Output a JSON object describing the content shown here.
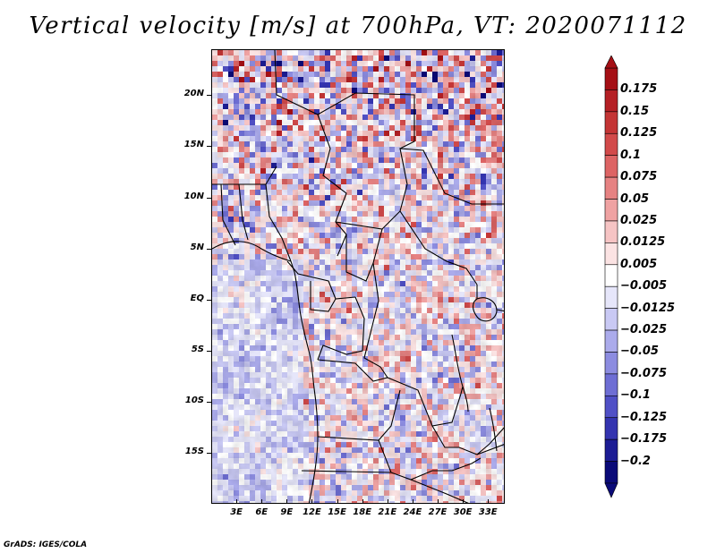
{
  "title": "Vertical velocity [m/s] at 700hPa, VT: 2020071112",
  "credit": "GrADS: IGES/COLA",
  "map": {
    "lat_labels": [
      "20N",
      "15N",
      "10N",
      "5N",
      "EQ",
      "5S",
      "10S",
      "15S"
    ],
    "lat_values": [
      20,
      15,
      10,
      5,
      0,
      -5,
      -10,
      -15
    ],
    "lon_labels": [
      "3E",
      "6E",
      "9E",
      "12E",
      "15E",
      "18E",
      "21E",
      "24E",
      "27E",
      "30E",
      "33E"
    ],
    "lon_values": [
      3,
      6,
      9,
      12,
      15,
      18,
      21,
      24,
      27,
      30,
      33
    ],
    "lat_range": [
      -20,
      24.5
    ],
    "lon_range": [
      0,
      35
    ]
  },
  "colorbar": {
    "labels": [
      "0.175",
      "0.15",
      "0.125",
      "0.1",
      "0.075",
      "0.05",
      "0.025",
      "0.0125",
      "0.005",
      "−0.005",
      "−0.0125",
      "−0.025",
      "−0.05",
      "−0.075",
      "−0.1",
      "−0.125",
      "−0.175",
      "−0.2"
    ],
    "colors": [
      "#a50f15",
      "#b52025",
      "#c43535",
      "#d24a4a",
      "#dd6464",
      "#e68282",
      "#efa2a2",
      "#f6c4c4",
      "#fbe3e3",
      "#ffffff",
      "#e6e6fa",
      "#c9c9f4",
      "#ababeb",
      "#8c8ce0",
      "#6e6ed4",
      "#5050c6",
      "#3434b0",
      "#1c1c94",
      "#0a0a78"
    ]
  }
}
